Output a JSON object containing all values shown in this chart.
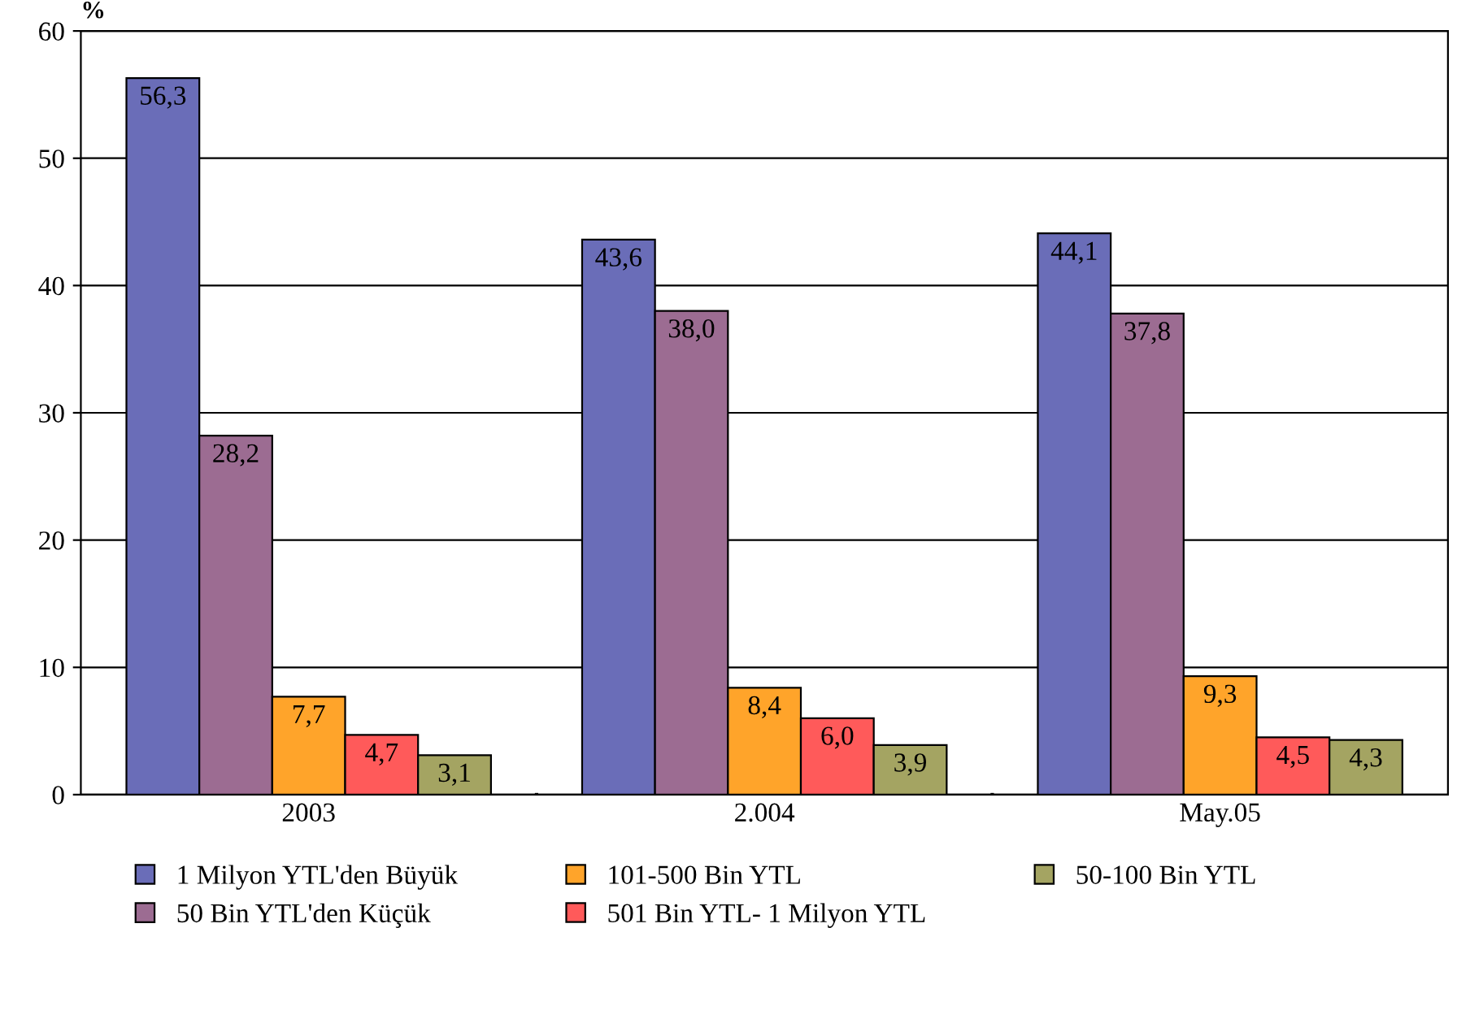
{
  "chart_data": {
    "type": "bar",
    "ylabel": "%",
    "categories": [
      "2003",
      "2.004",
      "May.05"
    ],
    "series": [
      {
        "name": "1 Milyon YTL'den Büyük",
        "color": "#6a6db8",
        "values": [
          56.3,
          43.6,
          44.1
        ],
        "value_labels": [
          "56,3",
          "43,6",
          "44,1"
        ]
      },
      {
        "name": "50 Bin YTL'den Küçük",
        "color": "#9c6c92",
        "values": [
          28.2,
          38.0,
          37.8
        ],
        "value_labels": [
          "28,2",
          "38,0",
          "37,8"
        ]
      },
      {
        "name": "101-500 Bin YTL",
        "color": "#ffa42a",
        "values": [
          7.7,
          8.4,
          9.3
        ],
        "value_labels": [
          "7,7",
          "8,4",
          "9,3"
        ]
      },
      {
        "name": "501 Bin YTL- 1 Milyon YTL",
        "color": "#ff5a5a",
        "values": [
          4.7,
          6.0,
          4.5
        ],
        "value_labels": [
          "4,7",
          "6,0",
          "4,5"
        ]
      },
      {
        "name": "50-100 Bin YTL",
        "color": "#a4a462",
        "values": [
          3.1,
          3.9,
          4.3
        ],
        "value_labels": [
          "3,1",
          "3,9",
          "4,3"
        ]
      }
    ],
    "ylim": [
      0,
      60
    ],
    "yticks": [
      0,
      10,
      20,
      30,
      40,
      50,
      60
    ],
    "grid": "y",
    "legend": "bottom"
  }
}
